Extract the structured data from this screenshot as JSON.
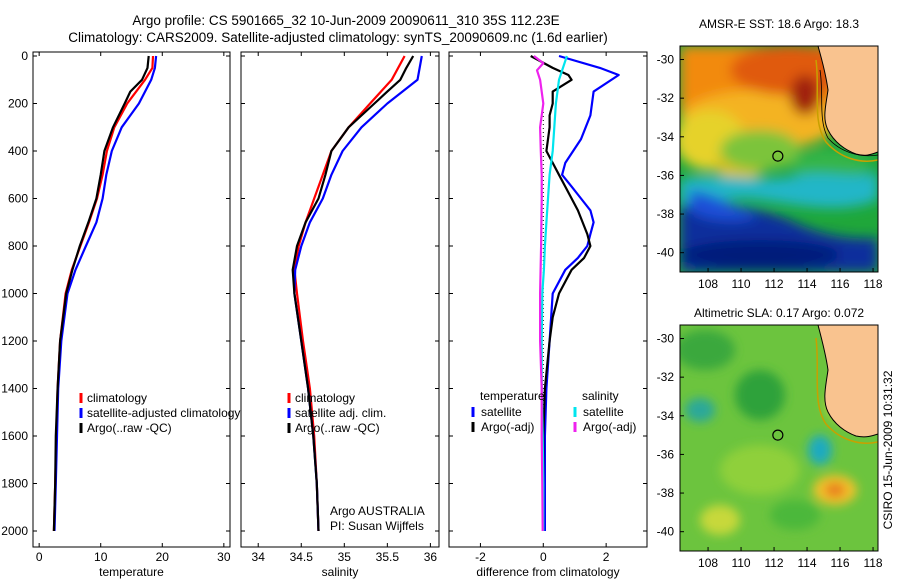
{
  "header": {
    "title_line1": "Argo profile: CS 5901665_32 10-Jun-2009 20090611_310 35S 112.23E",
    "title_line2": "Climatology: CARS2009. Satellite-adjusted climatology: synTS_20090609.nc (1.6d earlier)"
  },
  "side_label": "CSIRO 15-Jun-2009 10:31:32",
  "colors": {
    "climatology": "#ff0000",
    "satellite": "#0000ff",
    "argo": "#000000",
    "sat_temp_diff": "#00e5ee",
    "argo_sal_diff": "#ee22ee",
    "land": "#f9c38f"
  },
  "chart_data": [
    {
      "type": "line",
      "panel": "temperature",
      "xlabel": "temperature",
      "xlim": [
        -1,
        31
      ],
      "xticks": [
        "0",
        "10",
        "20",
        "30"
      ],
      "ylim": [
        0,
        2100
      ],
      "yticks": [
        "0",
        "200",
        "400",
        "600",
        "800",
        "1000",
        "1200",
        "1400",
        "1600",
        "1800",
        "2000"
      ],
      "y_reversed": true,
      "legend": [
        "climatology",
        "satellite-adjusted climatology",
        "Argo(..raw -QC)"
      ],
      "series": [
        {
          "name": "climatology",
          "depth": [
            0,
            50,
            100,
            200,
            300,
            400,
            500,
            600,
            700,
            800,
            900,
            1000,
            1200,
            1400,
            1600,
            1800,
            2000
          ],
          "values": [
            18.5,
            18.4,
            17.2,
            14.3,
            12.2,
            11.0,
            10.3,
            9.4,
            8.1,
            6.7,
            5.3,
            4.3,
            3.4,
            3.0,
            2.8,
            2.6,
            2.4
          ]
        },
        {
          "name": "satellite-adjusted climatology",
          "depth": [
            0,
            50,
            100,
            200,
            300,
            400,
            500,
            600,
            700,
            800,
            900,
            1000,
            1200,
            1400,
            1600,
            1800,
            2000
          ],
          "values": [
            19.0,
            18.8,
            18.2,
            16.2,
            13.4,
            11.8,
            10.9,
            10.3,
            9.3,
            7.6,
            5.9,
            4.6,
            3.6,
            3.1,
            2.9,
            2.7,
            2.5
          ]
        },
        {
          "name": "Argo(..raw -QC)",
          "depth": [
            0,
            50,
            100,
            150,
            200,
            300,
            400,
            500,
            600,
            700,
            800,
            900,
            1000,
            1200,
            1400,
            1600,
            1800,
            2000
          ],
          "values": [
            17.8,
            17.6,
            16.7,
            14.8,
            13.9,
            12.0,
            10.6,
            10.0,
            9.3,
            8.0,
            6.6,
            5.4,
            4.4,
            3.4,
            3.0,
            2.7,
            2.6,
            2.4
          ]
        }
      ]
    },
    {
      "type": "line",
      "panel": "salinity",
      "xlabel": "salinity",
      "xlim": [
        33.8,
        36.1
      ],
      "xticks": [
        "34",
        "34.5",
        "35",
        "35.5",
        "36"
      ],
      "ylim": [
        0,
        2100
      ],
      "y_reversed": true,
      "legend": [
        "climatology",
        "satellite adj. clim.",
        "Argo(..raw -QC)"
      ],
      "annotation": [
        "Argo AUSTRALIA",
        "PI: Susan Wijffels"
      ],
      "series": [
        {
          "name": "climatology",
          "depth": [
            0,
            100,
            200,
            300,
            400,
            500,
            600,
            700,
            800,
            900,
            1000,
            1200,
            1400,
            1600,
            1800,
            2000
          ],
          "values": [
            35.7,
            35.55,
            35.3,
            35.05,
            34.85,
            34.75,
            34.65,
            34.55,
            34.47,
            34.42,
            34.45,
            34.52,
            34.6,
            34.65,
            34.68,
            34.7
          ]
        },
        {
          "name": "satellite adj. clim.",
          "depth": [
            0,
            100,
            200,
            300,
            400,
            500,
            600,
            700,
            800,
            900,
            1000,
            1200,
            1400,
            1600,
            1800,
            2000
          ],
          "values": [
            35.9,
            35.85,
            35.5,
            35.2,
            34.98,
            34.85,
            34.75,
            34.6,
            34.5,
            34.43,
            34.42,
            34.5,
            34.58,
            34.64,
            34.68,
            34.7
          ]
        },
        {
          "name": "Argo(..raw -QC)",
          "depth": [
            0,
            50,
            100,
            150,
            200,
            300,
            400,
            500,
            600,
            700,
            800,
            900,
            1000,
            1200,
            1400,
            1600,
            1800,
            2000
          ],
          "values": [
            35.8,
            35.72,
            35.65,
            35.5,
            35.35,
            35.05,
            34.85,
            34.78,
            34.7,
            34.55,
            34.45,
            34.4,
            34.42,
            34.5,
            34.58,
            34.64,
            34.68,
            34.7
          ]
        }
      ]
    },
    {
      "type": "line",
      "panel": "difference",
      "xlabel": "difference from climatology",
      "xlim": [
        -3,
        3.3
      ],
      "xticks": [
        "-2",
        "0",
        "2"
      ],
      "ylim": [
        0,
        2100
      ],
      "y_reversed": true,
      "legend_groups": [
        {
          "heading": "temperature",
          "entries": [
            "satellite",
            "Argo(-adj)"
          ]
        },
        {
          "heading": "salinity",
          "entries": [
            "satellite",
            "Argo(-adj)"
          ]
        }
      ],
      "series": [
        {
          "name": "temperature satellite",
          "depth": [
            0,
            50,
            80,
            150,
            250,
            350,
            450,
            500,
            550,
            600,
            650,
            700,
            750,
            800,
            850,
            900,
            1000,
            1200,
            1400,
            1600,
            1800,
            2000
          ],
          "values": [
            0.5,
            1.8,
            2.4,
            1.6,
            1.5,
            1.2,
            0.7,
            0.6,
            0.9,
            1.2,
            1.5,
            1.6,
            1.5,
            1.4,
            1.1,
            0.7,
            0.3,
            0.2,
            0.1,
            0.05,
            0.05,
            0.05
          ]
        },
        {
          "name": "temperature Argo(-adj)",
          "depth": [
            0,
            50,
            80,
            100,
            150,
            200,
            250,
            300,
            400,
            450,
            500,
            550,
            650,
            750,
            800,
            850,
            900,
            950,
            1000,
            1100,
            1200,
            1400,
            1600,
            1800,
            2000
          ],
          "values": [
            -0.4,
            0.3,
            0.8,
            0.9,
            0.3,
            0.3,
            0.2,
            0.2,
            0.1,
            0.3,
            0.5,
            0.7,
            1.1,
            1.4,
            1.5,
            1.3,
            0.9,
            0.7,
            0.5,
            0.3,
            0.2,
            0.05,
            0.0,
            0.0,
            0.0
          ]
        },
        {
          "name": "salinity satellite",
          "depth": [
            0,
            100,
            200,
            300,
            400,
            500,
            600,
            700,
            800,
            900,
            1000,
            1200,
            1400,
            1600,
            1800,
            2000
          ],
          "values": [
            0.75,
            0.5,
            0.4,
            0.35,
            0.3,
            0.2,
            0.15,
            0.1,
            0.05,
            0.02,
            -0.03,
            -0.05,
            -0.05,
            -0.02,
            0.0,
            0.0
          ]
        },
        {
          "name": "salinity Argo(-adj)",
          "depth": [
            0,
            30,
            60,
            100,
            150,
            200,
            300,
            400,
            500,
            600,
            800,
            1000,
            1200,
            1400,
            1600,
            1800,
            2000
          ],
          "values": [
            -0.3,
            0.0,
            -0.2,
            -0.1,
            -0.05,
            0.0,
            -0.1,
            -0.08,
            -0.05,
            -0.05,
            -0.07,
            -0.1,
            -0.1,
            -0.05,
            -0.05,
            -0.03,
            -0.02
          ]
        }
      ]
    },
    {
      "type": "heatmap",
      "panel": "map-sst",
      "title": "AMSR-E SST: 18.6 Argo: 18.3",
      "xlim": [
        106.3,
        118.3
      ],
      "ylim": [
        -41,
        -29.3
      ],
      "xticks": [
        "108",
        "110",
        "112",
        "114",
        "116",
        "118"
      ],
      "yticks": [
        "-30",
        "-32",
        "-34",
        "-36",
        "-38",
        "-40"
      ],
      "marker": {
        "lon": 112.23,
        "lat": -35.0
      }
    },
    {
      "type": "heatmap",
      "panel": "map-sla",
      "title": "Altimetric SLA: 0.17 Argo: 0.072",
      "xlim": [
        106.3,
        118.3
      ],
      "ylim": [
        -41,
        -29.3
      ],
      "xticks": [
        "108",
        "110",
        "112",
        "114",
        "116",
        "118"
      ],
      "yticks": [
        "-30",
        "-32",
        "-34",
        "-36",
        "-38",
        "-40"
      ],
      "marker": {
        "lon": 112.23,
        "lat": -35.0
      }
    }
  ]
}
